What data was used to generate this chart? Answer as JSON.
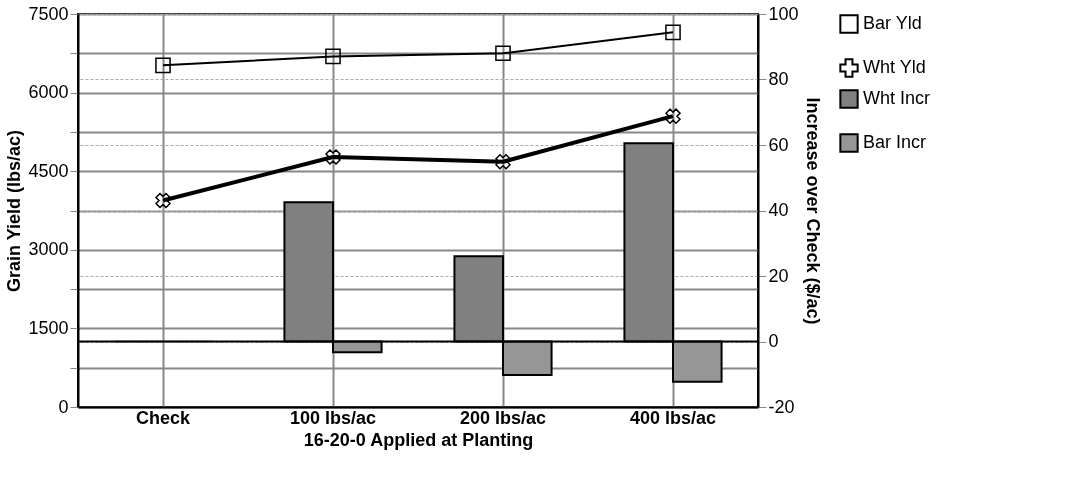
{
  "chart_data": {
    "type": "bar",
    "xlabel": "16-20-0 Applied at Planting",
    "ylabel": "Grain Yield (lbs/ac)",
    "y2label": "Increase over Check ($/ac)",
    "categories": [
      "Check",
      "100 lbs/ac",
      "200 lbs/ac",
      "400 lbs/ac"
    ],
    "series": [
      {
        "name": "Bar Yld",
        "type": "line",
        "marker": "square",
        "color": "#000000",
        "values": [
          6520,
          6690,
          6750,
          7150
        ]
      },
      {
        "name": "Wht Yld",
        "type": "line",
        "marker": "cross",
        "color": "#000000",
        "values": [
          3940,
          4770,
          4680,
          5550
        ]
      },
      {
        "name": "Wht Incr",
        "axis": "y2",
        "color": "#808080",
        "values": [
          0,
          42.5,
          26,
          60.5
        ]
      },
      {
        "name": "Bar Incr",
        "axis": "y2",
        "color": "#969696",
        "values": [
          0,
          -3.3,
          -10.2,
          -12.3
        ]
      }
    ],
    "ylim": [
      0,
      7500
    ],
    "yticks": [
      0,
      {
        "value": 750,
        "label": null
      },
      1500,
      {
        "value": 2250,
        "label": null
      },
      3000,
      {
        "value": 3750,
        "label": null
      },
      4500,
      {
        "value": 5250,
        "label": null
      },
      6000,
      {
        "value": 6750,
        "label": null
      },
      7500
    ],
    "y2lim": [
      -20,
      100
    ],
    "y2ticks": [
      -20,
      0,
      20,
      40,
      60,
      80,
      100
    ],
    "ref_lines": [
      {
        "axis": "y2",
        "value": 0,
        "color": "#000000"
      }
    ],
    "grid": true,
    "legend": "right"
  }
}
